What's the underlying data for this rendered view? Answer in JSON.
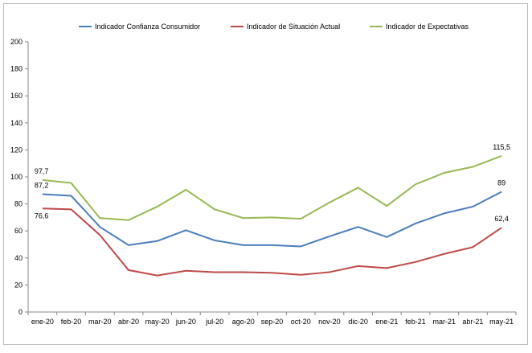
{
  "chart_data": {
    "type": "line",
    "title": "",
    "xlabel": "",
    "ylabel": "",
    "ylim": [
      0,
      200
    ],
    "yticks": [
      0,
      20,
      40,
      60,
      80,
      100,
      120,
      140,
      160,
      180,
      200
    ],
    "legend_position": "top",
    "categories": [
      "ene-20",
      "feb-20",
      "mar-20",
      "abr-20",
      "may-20",
      "jun-20",
      "jul-20",
      "ago-20",
      "sep-20",
      "oct-20",
      "nov-20",
      "dic-20",
      "ene-21",
      "feb-21",
      "mar-21",
      "abr-21",
      "may-21"
    ],
    "series": [
      {
        "name": "Indicador Confianza Consumidor",
        "color": "#4a7ebb",
        "values": [
          87.2,
          86,
          63,
          49.5,
          52.5,
          60.5,
          53,
          49.5,
          49.5,
          48.5,
          56,
          63,
          55.5,
          65.5,
          73,
          78,
          89
        ],
        "labels": [
          {
            "index": 0,
            "text": "87,2"
          },
          {
            "index": 16,
            "text": "89"
          }
        ]
      },
      {
        "name": "Indicador de Situación Actual",
        "color": "#be4b48",
        "values": [
          76.6,
          76,
          57,
          31,
          27,
          30.5,
          29.5,
          29.5,
          29,
          27.5,
          29.5,
          34,
          32.5,
          37,
          43,
          48,
          62.4
        ],
        "labels": [
          {
            "index": 0,
            "text": "76,6"
          },
          {
            "index": 16,
            "text": "62,4"
          }
        ]
      },
      {
        "name": "Indicador de Expectativas",
        "color": "#98b954",
        "values": [
          97.7,
          95.5,
          69.5,
          68,
          78,
          90.5,
          76,
          69.5,
          70,
          69,
          81,
          92,
          78.5,
          94.5,
          103,
          107.5,
          115.5
        ],
        "labels": [
          {
            "index": 0,
            "text": "97,7"
          },
          {
            "index": 16,
            "text": "115,5"
          }
        ]
      }
    ]
  }
}
